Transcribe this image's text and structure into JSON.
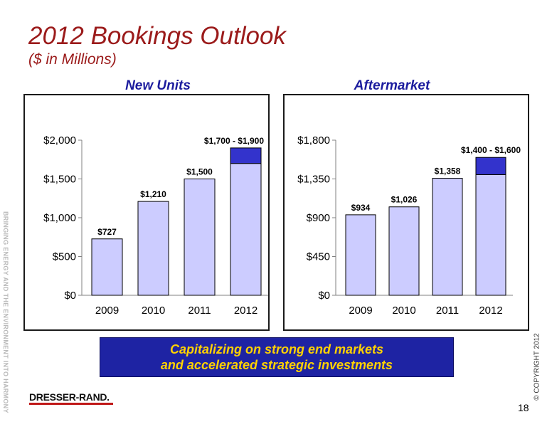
{
  "header": {
    "title": "2012 Bookings Outlook",
    "subtitle": "($ in Millions)"
  },
  "chart_data": [
    {
      "type": "bar",
      "title": "New Units",
      "categories": [
        "2009",
        "2010",
        "2011",
        "2012"
      ],
      "values": [
        727,
        1210,
        1500,
        1700
      ],
      "range_top": [
        null,
        null,
        null,
        1900
      ],
      "labels": [
        "$727",
        "$1,210",
        "$1,500",
        "$1,700 - $1,900"
      ],
      "yticks": [
        "$0",
        "$500",
        "$1,000",
        "$1,500",
        "$2,000"
      ],
      "ytick_values": [
        0,
        500,
        1000,
        1500,
        2000
      ],
      "ylim": [
        0,
        2000
      ],
      "colors": {
        "base": "#ccccff",
        "range": "#3333cc"
      }
    },
    {
      "type": "bar",
      "title": "Aftermarket",
      "categories": [
        "2009",
        "2010",
        "2011",
        "2012"
      ],
      "values": [
        934,
        1026,
        1358,
        1400
      ],
      "range_top": [
        null,
        null,
        null,
        1600
      ],
      "labels": [
        "$934",
        "$1,026",
        "$1,358",
        "$1,400 - $1,600"
      ],
      "yticks": [
        "$0",
        "$450",
        "$900",
        "$1,350",
        "$1,800"
      ],
      "ytick_values": [
        0,
        450,
        900,
        1350,
        1800
      ],
      "ylim": [
        0,
        1800
      ],
      "colors": {
        "base": "#ccccff",
        "range": "#3333cc"
      }
    }
  ],
  "banner": {
    "line1": "Capitalizing on strong end markets",
    "line2": "and accelerated strategic investments"
  },
  "side_text": "BRINGING ENERGY AND THE ENVIRONMENT INTO HARMONY",
  "copyright": "© COPYRIGHT 2012",
  "logo": "DRESSER-RAND.",
  "page_number": "18"
}
